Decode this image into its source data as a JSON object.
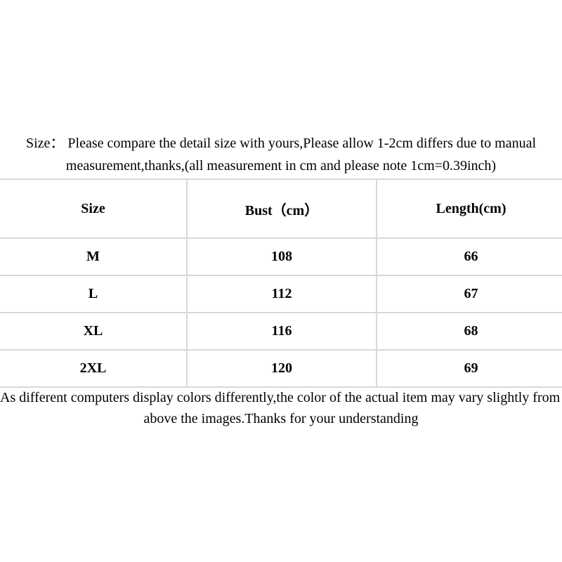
{
  "size_note": {
    "line1": "Size：  Please compare the detail size with yours,Please allow 1-2cm differs due to manual",
    "line2": "measurement,thanks,(all measurement in cm and please note 1cm=0.39inch)"
  },
  "size_table": {
    "headers": {
      "size": "Size",
      "bust": "Bust（cm）",
      "length": "Length(cm)"
    },
    "rows": [
      {
        "size": "M",
        "bust": "108",
        "length": "66"
      },
      {
        "size": "L",
        "bust": "112",
        "length": "67"
      },
      {
        "size": "XL",
        "bust": "116",
        "length": "68"
      },
      {
        "size": "2XL",
        "bust": "120",
        "length": "69"
      }
    ]
  },
  "color_note": {
    "line1": "As different computers display colors differently,the color of the actual item may vary slightly from the",
    "line2": "above the images.Thanks for your understanding"
  },
  "colors": {
    "background": "#ffffff",
    "text": "#000000",
    "table_border": "#d8d8d8"
  }
}
